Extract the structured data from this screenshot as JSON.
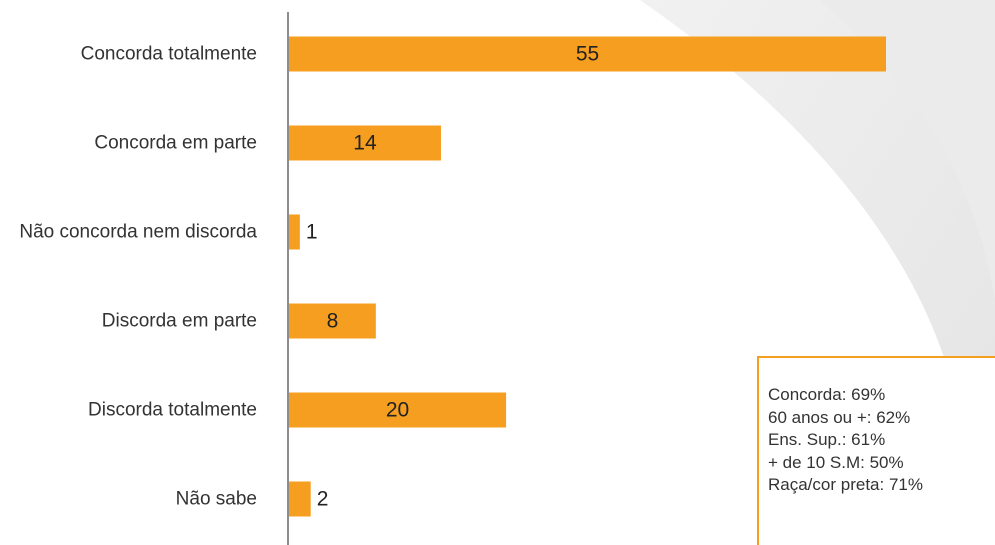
{
  "colors": {
    "bar": "#F59E1F",
    "axis": "#8c8c8c",
    "box_border": "#F59E1F"
  },
  "chart_data": {
    "type": "bar",
    "orientation": "horizontal",
    "categories": [
      "Concorda totalmente",
      "Concorda em parte",
      "Não concorda nem discorda",
      "Discorda em parte",
      "Discorda totalmente",
      "Não sabe"
    ],
    "values": [
      55,
      14,
      1,
      8,
      20,
      2
    ],
    "data_labels": [
      "55",
      "14",
      "1",
      "8",
      "20",
      "2"
    ],
    "xlim": [
      0,
      55
    ],
    "grid": false,
    "legend": "none"
  },
  "note_box": {
    "lines": [
      "Concorda: 69%",
      "60 anos ou +: 62%",
      "Ens. Sup.: 61%",
      "+ de 10 S.M: 50%",
      "Raça/cor preta: 71%"
    ]
  }
}
